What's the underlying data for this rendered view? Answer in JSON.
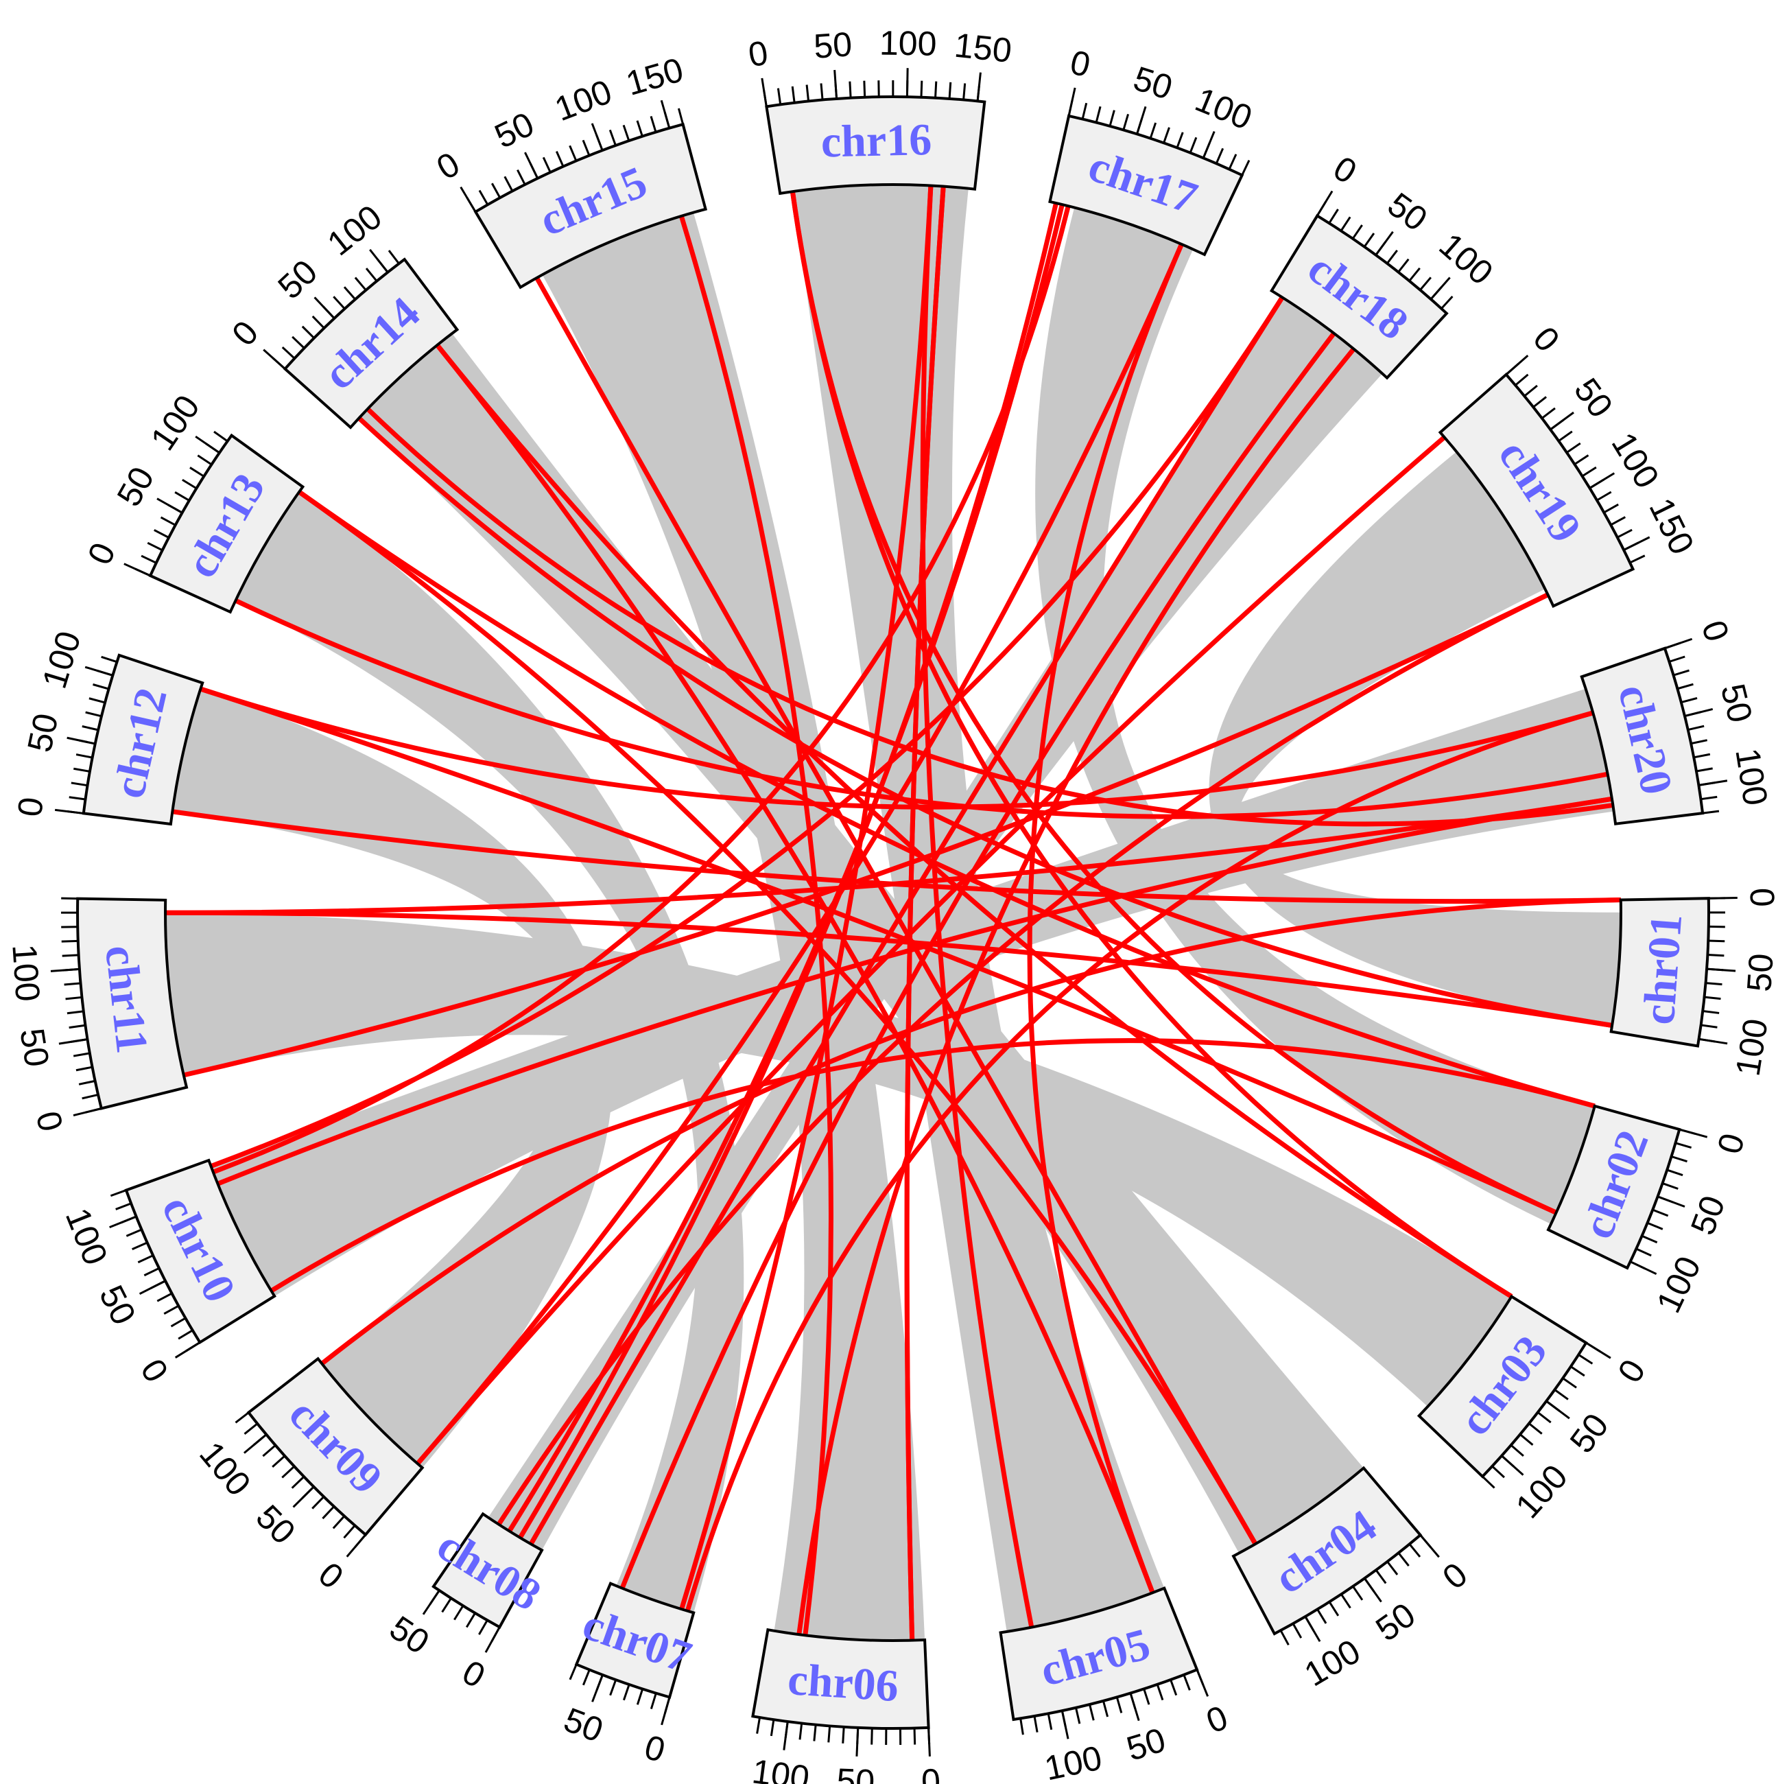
{
  "chart_data": {
    "type": "circos",
    "ideogram_fill": "#f0f0f0",
    "label_color": "#6666ff",
    "ribbon_color": "#c8c8c8",
    "link_color": "#ff0000",
    "minor_tick_interval": 10,
    "chromosomes": [
      {
        "name": "chr01",
        "length": 105,
        "ticks": [
          0,
          50,
          100
        ]
      },
      {
        "name": "chr02",
        "length": 105,
        "ticks": [
          0,
          50,
          100
        ]
      },
      {
        "name": "chr03",
        "length": 120,
        "ticks": [
          0,
          50,
          100
        ]
      },
      {
        "name": "chr04",
        "length": 125,
        "ticks": [
          0,
          50,
          100
        ]
      },
      {
        "name": "chr05",
        "length": 135,
        "ticks": [
          0,
          50,
          100
        ]
      },
      {
        "name": "chr06",
        "length": 125,
        "ticks": [
          0,
          50,
          100
        ]
      },
      {
        "name": "chr07",
        "length": 70,
        "ticks": [
          0,
          50
        ]
      },
      {
        "name": "chr08",
        "length": 55,
        "ticks": [
          0,
          50
        ]
      },
      {
        "name": "chr09",
        "length": 120,
        "ticks": [
          0,
          50,
          100
        ]
      },
      {
        "name": "chr10",
        "length": 120,
        "ticks": [
          0,
          50,
          100
        ]
      },
      {
        "name": "chr11",
        "length": 150,
        "ticks": [
          0,
          50,
          100
        ]
      },
      {
        "name": "chr12",
        "length": 115,
        "ticks": [
          0,
          50,
          100
        ]
      },
      {
        "name": "chr13",
        "length": 115,
        "ticks": [
          0,
          50,
          100
        ]
      },
      {
        "name": "chr14",
        "length": 115,
        "ticks": [
          0,
          50,
          100
        ]
      },
      {
        "name": "chr15",
        "length": 160,
        "ticks": [
          0,
          50,
          100,
          150
        ]
      },
      {
        "name": "chr16",
        "length": 155,
        "ticks": [
          0,
          50,
          100,
          150
        ]
      },
      {
        "name": "chr17",
        "length": 130,
        "ticks": [
          0,
          50,
          100
        ]
      },
      {
        "name": "chr18",
        "length": 115,
        "ticks": [
          0,
          50,
          100
        ]
      },
      {
        "name": "chr19",
        "length": 165,
        "ticks": [
          0,
          50,
          100,
          150
        ]
      },
      {
        "name": "chr20",
        "length": 120,
        "ticks": [
          0,
          50,
          100
        ]
      }
    ],
    "ribbons": [
      [
        "chr01",
        10,
        100,
        "chr19",
        20,
        150
      ],
      [
        "chr02",
        0,
        100,
        "chr17",
        20,
        120
      ],
      [
        "chr03",
        0,
        110,
        "chr11",
        10,
        140
      ],
      [
        "chr04",
        0,
        120,
        "chr14",
        10,
        110
      ],
      [
        "chr05",
        0,
        130,
        "chr16",
        10,
        150
      ],
      [
        "chr06",
        0,
        120,
        "chr15",
        20,
        150
      ],
      [
        "chr07",
        0,
        65,
        "chr13",
        10,
        110
      ],
      [
        "chr08",
        0,
        50,
        "chr18",
        10,
        110
      ],
      [
        "chr09",
        0,
        115,
        "chr12",
        10,
        110
      ],
      [
        "chr10",
        0,
        115,
        "chr20",
        10,
        110
      ]
    ],
    "links": [
      [
        "chr15",
        15,
        "chr04",
        105
      ],
      [
        "chr15",
        140,
        "chr06",
        95
      ],
      [
        "chr16",
        10,
        "chr03",
        0
      ],
      [
        "chr16",
        120,
        "chr07",
        10
      ],
      [
        "chr16",
        130,
        "chr06",
        10
      ],
      [
        "chr17",
        5,
        "chr08",
        20
      ],
      [
        "chr17",
        10,
        "chr08",
        30
      ],
      [
        "chr17",
        15,
        "chr10",
        110
      ],
      [
        "chr17",
        110,
        "chr05",
        10
      ],
      [
        "chr18",
        10,
        "chr10",
        115
      ],
      [
        "chr18",
        60,
        "chr07",
        60
      ],
      [
        "chr18",
        80,
        "chr06",
        100
      ],
      [
        "chr19",
        5,
        "chr09",
        5
      ],
      [
        "chr19",
        155,
        "chr11",
        10
      ],
      [
        "chr20",
        30,
        "chr12",
        110
      ],
      [
        "chr20",
        80,
        "chr13",
        10
      ],
      [
        "chr20",
        100,
        "chr11",
        140
      ],
      [
        "chr20",
        105,
        "chr14",
        20
      ],
      [
        "chr01",
        0,
        "chr12",
        10
      ],
      [
        "chr01",
        100,
        "chr14",
        10
      ],
      [
        "chr02",
        0,
        "chr13",
        110
      ],
      [
        "chr02",
        90,
        "chr16",
        10
      ],
      [
        "chr03",
        0,
        "chr14",
        95
      ],
      [
        "chr04",
        105,
        "chr13",
        110
      ],
      [
        "chr05",
        110,
        "chr16",
        120
      ],
      [
        "chr06",
        10,
        "chr16",
        130
      ],
      [
        "chr07",
        5,
        "chr20",
        30
      ],
      [
        "chr08",
        40,
        "chr19",
        155
      ],
      [
        "chr08",
        10,
        "chr18",
        10
      ],
      [
        "chr09",
        115,
        "chr01",
        0
      ],
      [
        "chr10",
        5,
        "chr02",
        0
      ],
      [
        "chr10",
        100,
        "chr20",
        100
      ],
      [
        "chr11",
        140,
        "chr01",
        100
      ],
      [
        "chr12",
        110,
        "chr02",
        90
      ],
      [
        "chr14",
        95,
        "chr05",
        10
      ],
      [
        "chr09",
        5,
        "chr17",
        110
      ]
    ]
  }
}
